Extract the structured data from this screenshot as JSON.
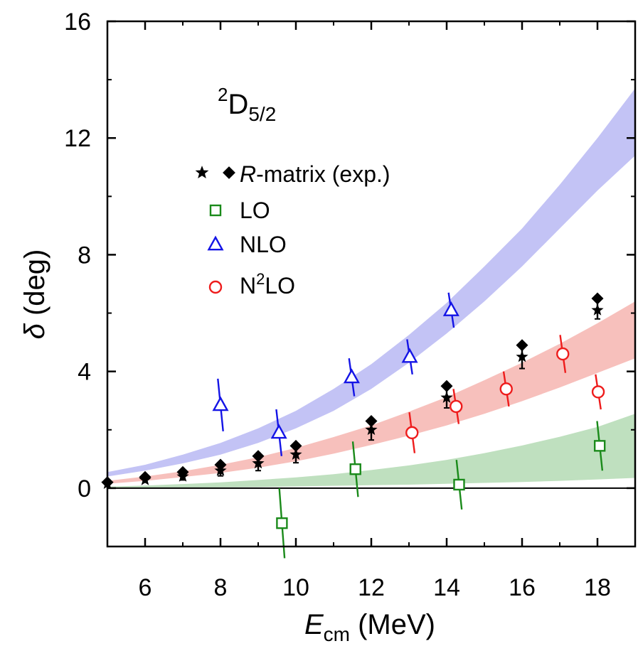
{
  "chart_data": {
    "type": "scatter",
    "panel_label": {
      "base": "D",
      "sup": "2",
      "sub": "5/2"
    },
    "xlabel": {
      "symbol": "E",
      "sub": "cm",
      "unit": " (MeV)"
    },
    "ylabel": {
      "symbol": "δ",
      "unit": " (deg)"
    },
    "xlim": [
      5,
      19
    ],
    "ylim": [
      -2,
      16
    ],
    "xticks": [
      6,
      8,
      10,
      12,
      14,
      16,
      18
    ],
    "yticks": [
      0,
      4,
      8,
      12,
      16
    ],
    "xtick_labels": [
      "6",
      "8",
      "10",
      "12",
      "14",
      "16",
      "18"
    ],
    "ytick_labels": [
      "0",
      "4",
      "8",
      "12",
      "16"
    ],
    "legend": {
      "position": "upper-left",
      "rmatrix": {
        "italic": "R",
        "rest": "-matrix (exp.)"
      },
      "lo": "LO",
      "nlo": "NLO",
      "n2lo": {
        "pre": "N",
        "sup": "2",
        "post": "LO"
      }
    },
    "colors": {
      "exp": "#000000",
      "lo": "#1a8a1a",
      "nlo": "#1414e6",
      "n2lo": "#ee1c1c",
      "lo_band": "#bfe0bf",
      "nlo_band": "#c3c3f5",
      "n2lo_band": "#f7c0bc"
    },
    "bands": [
      {
        "id": "nlo",
        "x": [
          5.0,
          6.0,
          7.0,
          8.0,
          9.0,
          10.0,
          11.0,
          12.0,
          13.0,
          14.0,
          15.0,
          16.0,
          17.0,
          18.0,
          19.0
        ],
        "lower": [
          0.4,
          0.6,
          0.85,
          1.15,
          1.55,
          2.05,
          2.65,
          3.4,
          4.3,
          5.3,
          6.4,
          7.6,
          8.9,
          10.2,
          11.4
        ],
        "upper": [
          0.55,
          0.8,
          1.15,
          1.55,
          2.05,
          2.65,
          3.4,
          4.25,
          5.25,
          6.35,
          7.6,
          8.9,
          10.4,
          12.0,
          13.7
        ]
      },
      {
        "id": "n2lo",
        "x": [
          5.0,
          6.0,
          7.0,
          8.0,
          9.0,
          10.0,
          11.0,
          12.0,
          13.0,
          14.0,
          15.0,
          16.0,
          17.0,
          18.0,
          19.0
        ],
        "lower": [
          0.15,
          0.25,
          0.38,
          0.52,
          0.7,
          0.92,
          1.18,
          1.48,
          1.8,
          2.15,
          2.55,
          2.98,
          3.45,
          3.95,
          4.45
        ],
        "upper": [
          0.25,
          0.4,
          0.58,
          0.8,
          1.06,
          1.38,
          1.75,
          2.15,
          2.62,
          3.12,
          3.7,
          4.3,
          4.95,
          5.65,
          6.4
        ]
      },
      {
        "id": "lo",
        "x": [
          5.0,
          6.0,
          7.0,
          8.0,
          9.0,
          10.0,
          11.0,
          12.0,
          13.0,
          14.0,
          15.0,
          16.0,
          17.0,
          18.0,
          19.0
        ],
        "lower": [
          0.0,
          0.01,
          0.02,
          0.03,
          0.04,
          0.06,
          0.08,
          0.1,
          0.12,
          0.15,
          0.18,
          0.21,
          0.25,
          0.3,
          0.35
        ],
        "upper": [
          0.05,
          0.09,
          0.14,
          0.2,
          0.28,
          0.37,
          0.48,
          0.62,
          0.78,
          0.97,
          1.2,
          1.46,
          1.76,
          2.1,
          2.55
        ]
      }
    ],
    "series": [
      {
        "id": "exp_star",
        "marker": "star",
        "x": [
          5.0,
          6.0,
          7.0,
          8.0,
          9.0,
          10.0,
          12.0,
          14.0,
          16.0,
          18.0
        ],
        "y": [
          0.15,
          0.28,
          0.4,
          0.6,
          0.85,
          1.15,
          2.0,
          3.1,
          4.5,
          6.1
        ],
        "err": [
          0.05,
          0.08,
          0.12,
          0.18,
          0.25,
          0.28,
          0.35,
          0.35,
          0.4,
          0.3
        ]
      },
      {
        "id": "exp_diamond",
        "marker": "diamond",
        "x": [
          5.0,
          6.0,
          7.0,
          8.0,
          9.0,
          10.0,
          12.0,
          14.0,
          16.0,
          18.0
        ],
        "y": [
          0.2,
          0.38,
          0.55,
          0.8,
          1.1,
          1.45,
          2.3,
          3.5,
          4.9,
          6.5
        ]
      },
      {
        "id": "lo",
        "marker": "square",
        "x": [
          9.63,
          11.58,
          14.33,
          18.06
        ],
        "y": [
          -1.2,
          0.65,
          0.12,
          1.45
        ],
        "err": [
          1.2,
          0.95,
          0.85,
          0.85
        ],
        "tilt": 0.07
      },
      {
        "id": "nlo",
        "marker": "triangle",
        "x": [
          8.0,
          9.55,
          11.48,
          13.02,
          14.12
        ],
        "y": [
          2.85,
          1.9,
          3.8,
          4.5,
          6.1
        ],
        "err": [
          0.9,
          0.8,
          0.65,
          0.6,
          0.6
        ],
        "tilt": 0.07
      },
      {
        "id": "n2lo",
        "marker": "circle",
        "x": [
          13.08,
          14.25,
          15.58,
          17.08,
          18.02
        ],
        "y": [
          1.9,
          2.8,
          3.4,
          4.6,
          3.3
        ],
        "err": [
          0.7,
          0.6,
          0.6,
          0.65,
          0.6
        ],
        "tilt": 0.07
      }
    ]
  }
}
